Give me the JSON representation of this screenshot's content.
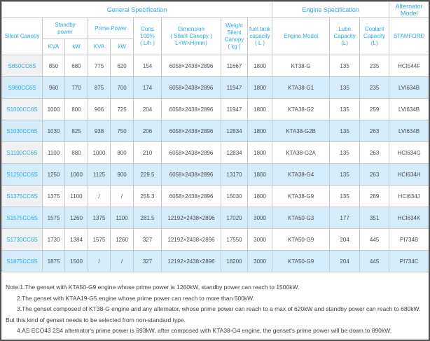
{
  "colors": {
    "header_text": "#29abe2",
    "row_stripe": "#d5ecfb",
    "first_col_tint": "#f0f1f2",
    "grid_line": "#c6c7c9",
    "note_text": "#404042"
  },
  "table": {
    "sections": {
      "general": "General Specification",
      "engine": "Engine Specification",
      "alternator": "Alternator\nModel"
    },
    "headers": {
      "silent_canopy": "Silent Canopy",
      "standby_power": "Standby\npower",
      "prime_power": "Prime Power",
      "kva": "KVA",
      "kw": "kW",
      "cons": "Cons\n100%\n( L/h )",
      "dimension": "Dimension\n( Silent Canopy )\nL×W×H(mm)",
      "weight": "Weight\nSilent\nCanopy\n( kg )",
      "fuel_tank": "fuel tank\ncapacity\n( L )",
      "engine_model": "Engine Model",
      "lube_capacity": "Lube\nCapacity\n(L)",
      "coolant_capacity": "Coolant\nCapacity\n(L)",
      "stamford": "STAMFORD"
    },
    "rows": [
      [
        "S850CC6S",
        "850",
        "680",
        "775",
        "620",
        "154",
        "6058×2438×2896",
        "11667",
        "1800",
        "KT38-G",
        "135",
        "235",
        "HCI544F"
      ],
      [
        "S960CC6S",
        "960",
        "770",
        "875",
        "700",
        "174",
        "6058×2438×2896",
        "11947",
        "1800",
        "KTA38-G1",
        "135",
        "235",
        "LVI634B"
      ],
      [
        "S1000CC6S",
        "1000",
        "800",
        "906",
        "725",
        "204",
        "6058×2438×2896",
        "11947",
        "1800",
        "KTA38-G2",
        "135",
        "259",
        "LVI634B"
      ],
      [
        "S1030CC6S",
        "1030",
        "825",
        "938",
        "750",
        "206",
        "6058×2438×2896",
        "12834",
        "1800",
        "KTA38-G2B",
        "135",
        "263",
        "LVI634B"
      ],
      [
        "S1100CC6S",
        "1100",
        "880",
        "1000",
        "800",
        "210",
        "6058×2438×2896",
        "12834",
        "1800",
        "KTA38-G2A",
        "135",
        "263",
        "HCI634G"
      ],
      [
        "S1250CC6S",
        "1250",
        "1000",
        "1125",
        "900",
        "229.5",
        "6058×2438×2896",
        "13170",
        "1800",
        "KTA38-G4",
        "135",
        "263",
        "HCI634H"
      ],
      [
        "S1375CC6S",
        "1375",
        "1100",
        "/",
        "/",
        "255.3",
        "6058×2438×2896",
        "15030",
        "1800",
        "KTA38-G9",
        "135",
        "289",
        "HCI634J"
      ],
      [
        "S1575CC6S",
        "1575",
        "1260",
        "1375",
        "1100",
        "281.5",
        "12192×2438×2896",
        "17020",
        "3000",
        "KTA50-G3",
        "177",
        "351",
        "HCI634K"
      ],
      [
        "S1730CC6S",
        "1730",
        "1384",
        "1575",
        "1260",
        "327",
        "12192×2438×2896",
        "17550",
        "3000",
        "KTA50-G9",
        "204",
        "445",
        "PI734B"
      ],
      [
        "S1875CC6S",
        "1875",
        "1500",
        "/",
        "/",
        "327",
        "12192×2438×2896",
        "18200",
        "3000",
        "KTA50-G9",
        "204",
        "445",
        "PI734C"
      ]
    ]
  },
  "notes": {
    "lines": [
      "Note:1.The genset with KTA50-G9 engine whose prime power is 1260kW, standby power can reach to 1500kW.",
      "2.The genset with KTAA19-G5 engine whose prime power can reach to more than 500kW.",
      "3.The genset composed of KT38-G engine and any alternator, whose prime power can reach to a max of 620kW and standby power can reach to 680kW.",
      "But this kind of genset needs to be selected from non-standard type.",
      "4.AS ECO43 2S4 alternator's prime power is 893kW, after composed with KTA38-G4 engine, the genset's prime power will be down to 890kW."
    ]
  }
}
